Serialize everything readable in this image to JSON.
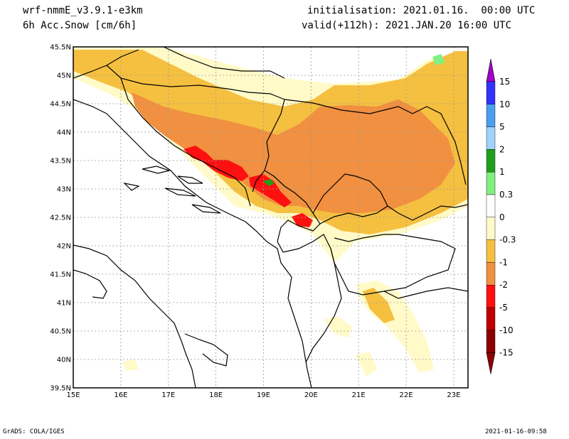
{
  "header": {
    "model": "wrf-nmmE_v3.9.1-e3km",
    "variable": "6h Acc.Snow [cm/6h]",
    "init": "initialisation: 2021.01.16.  00:00 UTC",
    "valid": "valid(+112h): 2021.JAN.20 16:00 UTC"
  },
  "map": {
    "lat_labels": [
      "45.5N",
      "45N",
      "44.5N",
      "44N",
      "43.5N",
      "43N",
      "42.5N",
      "42N",
      "41.5N",
      "41N",
      "40.5N",
      "40N",
      "39.5N"
    ],
    "lon_labels": [
      "15E",
      "16E",
      "17E",
      "18E",
      "19E",
      "20E",
      "21E",
      "22E",
      "23E"
    ],
    "lat_range": [
      39.5,
      45.5
    ],
    "lon_range": [
      15,
      23.3
    ]
  },
  "legend": {
    "labels": [
      "15",
      "10",
      "5",
      "2",
      "1",
      "0.3",
      "0",
      "-0.3",
      "-1",
      "-2",
      "-5",
      "-10",
      "-15"
    ],
    "colors": [
      "#a000c8",
      "#3232ff",
      "#4a9ef0",
      "#a0d2fa",
      "#1ea01e",
      "#80f080",
      "#ffffff",
      "#fffac8",
      "#f5c040",
      "#f09040",
      "#ff1010",
      "#c00000",
      "#8c0000"
    ]
  },
  "footer": {
    "left": "GrADS: COLA/IGES",
    "right": "2021-01-16-09:58"
  }
}
